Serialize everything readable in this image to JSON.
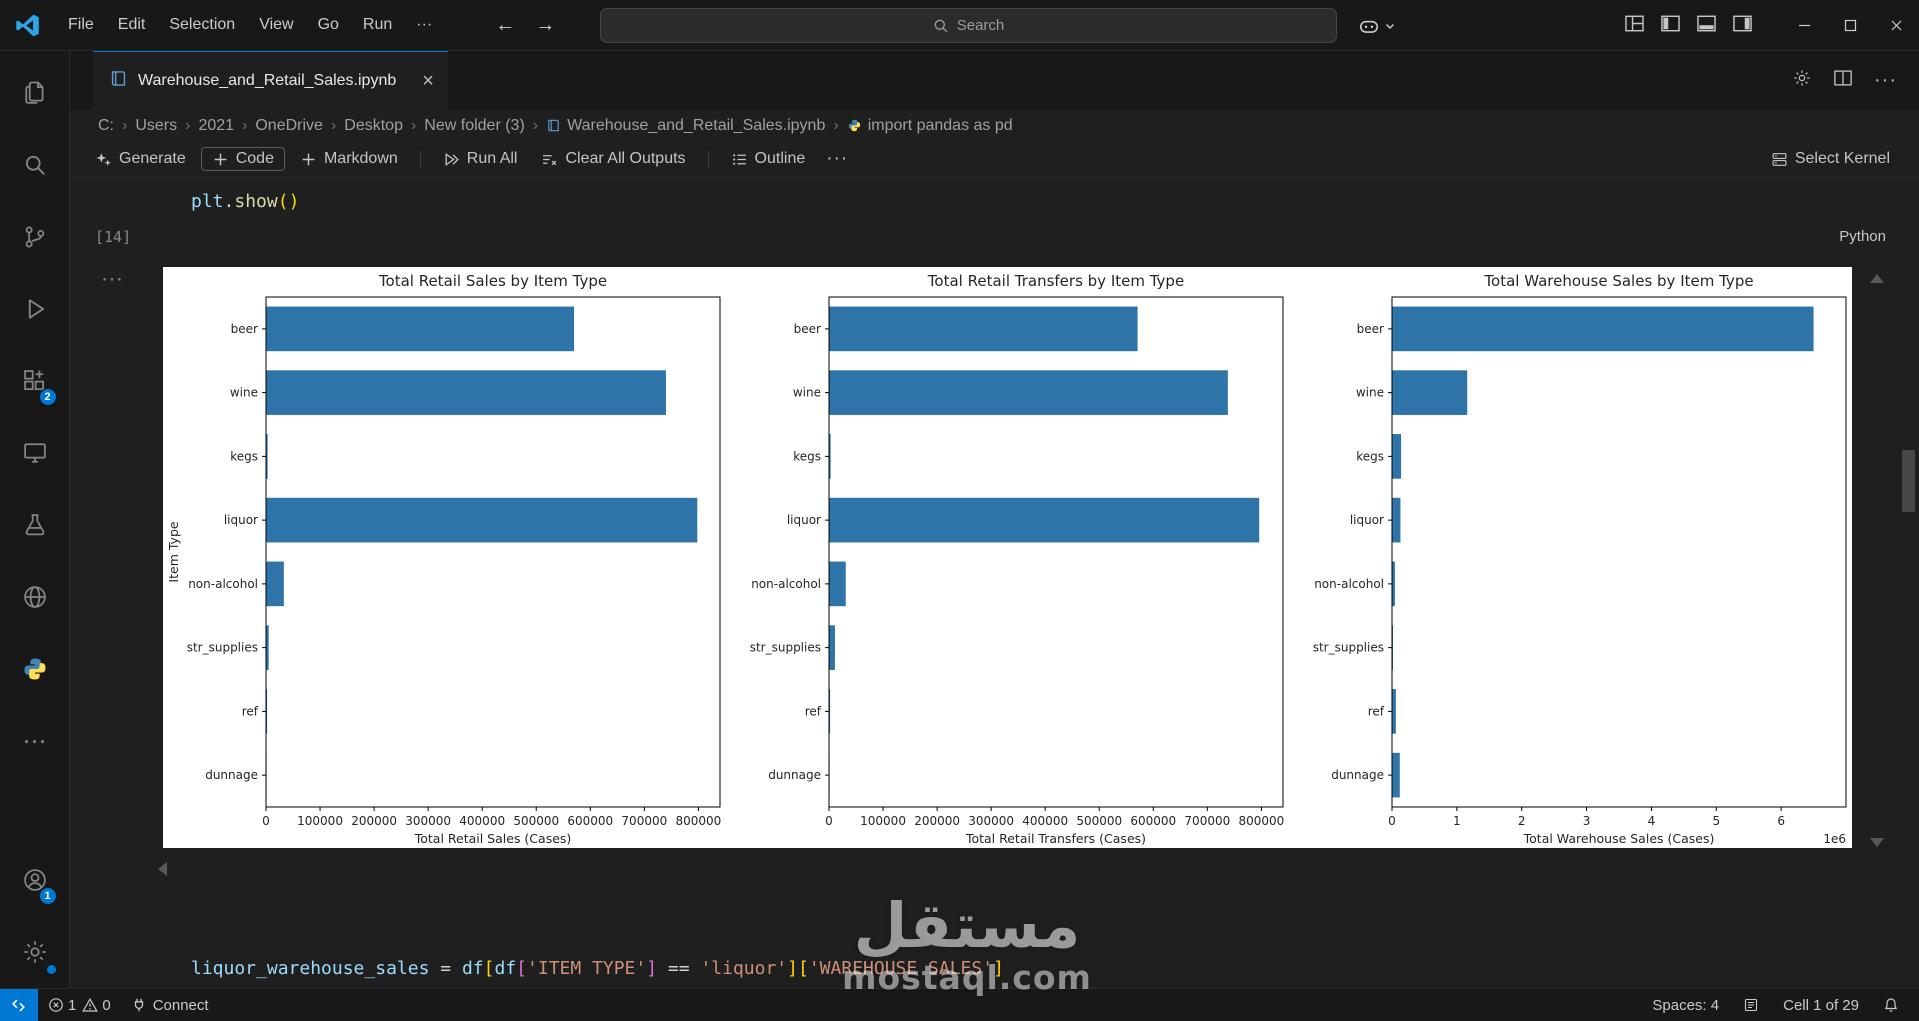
{
  "title_bar": {
    "menus": [
      {
        "label": "File"
      },
      {
        "label": "Edit"
      },
      {
        "label": "Selection"
      },
      {
        "label": "View"
      },
      {
        "label": "Go"
      },
      {
        "label": "Run"
      }
    ],
    "more_label": "···",
    "search_placeholder": "Search"
  },
  "activity_bar": {
    "extensions_badge": "2",
    "accounts_badge": "1"
  },
  "tab_bar": {
    "tab_name": "Warehouse_and_Retail_Sales.ipynb"
  },
  "breadcrumb": {
    "items": [
      {
        "label": "C:"
      },
      {
        "label": "Users"
      },
      {
        "label": "2021"
      },
      {
        "label": "OneDrive"
      },
      {
        "label": "Desktop"
      },
      {
        "label": "New folder (3)"
      },
      {
        "label": "Warehouse_and_Retail_Sales.ipynb"
      },
      {
        "label": "import pandas as pd"
      }
    ]
  },
  "notebook_toolbar": {
    "generate_label": "Generate",
    "code_label": "Code",
    "markdown_label": "Markdown",
    "run_all_label": "Run All",
    "clear_all_label": "Clear All Outputs",
    "outline_label": "Outline",
    "more_label": "···",
    "select_kernel_label": "Select Kernel"
  },
  "cells": {
    "cell1": {
      "exec_count": "[14]",
      "lang_label": "Python",
      "tokens": [
        {
          "text": "plt",
          "type": "v"
        },
        {
          "text": ".",
          "type": "p"
        },
        {
          "text": "show",
          "type": "f"
        },
        {
          "text": "(",
          "type": "b1"
        },
        {
          "text": ")",
          "type": "b1"
        }
      ]
    },
    "cell2": {
      "tokens": [
        {
          "text": "liquor_warehouse_sales",
          "type": "v"
        },
        {
          "text": " ",
          "type": "p"
        },
        {
          "text": "=",
          "type": "p"
        },
        {
          "text": " ",
          "type": "p"
        },
        {
          "text": "df",
          "type": "v"
        },
        {
          "text": "[",
          "type": "b1"
        },
        {
          "text": "df",
          "type": "v"
        },
        {
          "text": "[",
          "type": "b2"
        },
        {
          "text": "'ITEM TYPE'",
          "type": "s"
        },
        {
          "text": "]",
          "type": "b2"
        },
        {
          "text": " ",
          "type": "p"
        },
        {
          "text": "==",
          "type": "p"
        },
        {
          "text": " ",
          "type": "p"
        },
        {
          "text": "'liquor'",
          "type": "s"
        },
        {
          "text": "]",
          "type": "b1"
        },
        {
          "text": "[",
          "type": "b1"
        },
        {
          "text": "'WAREHOUSE SALES'",
          "type": "s"
        },
        {
          "text": "]",
          "type": "b1"
        }
      ]
    }
  },
  "chart_data": [
    {
      "type": "bar",
      "orientation": "horizontal",
      "title": "Total Retail Sales by Item Type",
      "xlabel": "Total Retail Sales (Cases)",
      "ylabel": "Item Type",
      "categories": [
        "beer",
        "wine",
        "kegs",
        "liquor",
        "non-alcohol",
        "str_supplies",
        "ref",
        "dunnage"
      ],
      "values": [
        570000,
        740000,
        3000,
        798000,
        33000,
        5000,
        2000,
        800
      ],
      "xlim": [
        0,
        840000
      ],
      "xticks": [
        0,
        100000,
        200000,
        300000,
        400000,
        500000,
        600000,
        700000,
        800000
      ],
      "xtick_labels": [
        "0",
        "100000",
        "200000",
        "300000",
        "400000",
        "500000",
        "600000",
        "700000",
        "800000"
      ],
      "bar_color": "#2e74a8",
      "grid": false,
      "legend": false
    },
    {
      "type": "bar",
      "orientation": "horizontal",
      "title": "Total Retail Transfers by Item Type",
      "xlabel": "Total Retail Transfers (Cases)",
      "ylabel": "",
      "categories": [
        "beer",
        "wine",
        "kegs",
        "liquor",
        "non-alcohol",
        "str_supplies",
        "ref",
        "dunnage"
      ],
      "values": [
        571000,
        738000,
        3000,
        796000,
        31000,
        11000,
        2000,
        700
      ],
      "xlim": [
        0,
        840000
      ],
      "xticks": [
        0,
        100000,
        200000,
        300000,
        400000,
        500000,
        600000,
        700000,
        800000
      ],
      "xtick_labels": [
        "0",
        "100000",
        "200000",
        "300000",
        "400000",
        "500000",
        "600000",
        "700000",
        "800000"
      ],
      "bar_color": "#2e74a8",
      "grid": false,
      "legend": false
    },
    {
      "type": "bar",
      "orientation": "horizontal",
      "title": "Total Warehouse Sales by Item Type",
      "xlabel": "Total Warehouse Sales (Cases)",
      "ylabel": "",
      "categories": [
        "beer",
        "wine",
        "kegs",
        "liquor",
        "non-alcohol",
        "str_supplies",
        "ref",
        "dunnage"
      ],
      "values": [
        6500000,
        1160000,
        140000,
        130000,
        45000,
        15000,
        60000,
        120000
      ],
      "xlim": [
        0,
        7000000
      ],
      "xticks": [
        0,
        1000000,
        2000000,
        3000000,
        4000000,
        5000000,
        6000000
      ],
      "xtick_labels": [
        "0",
        "1",
        "2",
        "3",
        "4",
        "5",
        "6"
      ],
      "offset_text": "1e6",
      "bar_color": "#2e74a8",
      "grid": false,
      "legend": false
    }
  ],
  "watermark": {
    "arabic": "مستقل",
    "latin": "mostaql.com"
  },
  "status_bar": {
    "error_count": "1",
    "warning_count": "0",
    "connect_label": "Connect",
    "spaces_label": "Spaces: 4",
    "cell_indicator": "Cell 1 of 29"
  }
}
